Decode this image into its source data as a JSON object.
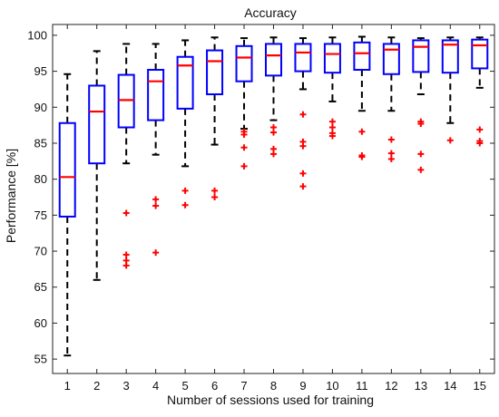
{
  "chart_data": {
    "type": "box",
    "title": "Accuracy",
    "xlabel": "Number of sessions used for training",
    "ylabel": "Performance [%]",
    "ylim": [
      53,
      101.5
    ],
    "yticks": [
      55,
      60,
      65,
      70,
      75,
      80,
      85,
      90,
      95,
      100
    ],
    "categories": [
      "1",
      "2",
      "3",
      "4",
      "5",
      "6",
      "7",
      "8",
      "9",
      "10",
      "11",
      "12",
      "13",
      "14",
      "15"
    ],
    "grid": false,
    "colors": {
      "box": "#0000ff",
      "median": "#ff0000",
      "whisker": "#000000",
      "outlier": "#ff0000"
    },
    "boxes": [
      {
        "category": "1",
        "whisker_low": 55.5,
        "q1": 74.8,
        "median": 80.3,
        "q3": 87.8,
        "whisker_high": 94.6,
        "outliers": []
      },
      {
        "category": "2",
        "whisker_low": 66.0,
        "q1": 82.2,
        "median": 89.4,
        "q3": 93.0,
        "whisker_high": 97.8,
        "outliers": []
      },
      {
        "category": "3",
        "whisker_low": 82.2,
        "q1": 87.2,
        "median": 91.0,
        "q3": 94.5,
        "whisker_high": 98.8,
        "outliers": [
          75.3,
          69.5,
          68.7,
          68.0
        ]
      },
      {
        "category": "4",
        "whisker_low": 83.4,
        "q1": 88.2,
        "median": 93.6,
        "q3": 95.2,
        "whisker_high": 98.8,
        "outliers": [
          77.2,
          76.3,
          69.8
        ]
      },
      {
        "category": "5",
        "whisker_low": 81.8,
        "q1": 89.8,
        "median": 95.8,
        "q3": 97.0,
        "whisker_high": 99.3,
        "outliers": [
          78.4,
          76.4
        ]
      },
      {
        "category": "6",
        "whisker_low": 84.8,
        "q1": 91.8,
        "median": 96.4,
        "q3": 97.9,
        "whisker_high": 99.7,
        "outliers": [
          78.4,
          77.5
        ]
      },
      {
        "category": "7",
        "whisker_low": 87.0,
        "q1": 93.6,
        "median": 96.9,
        "q3": 98.5,
        "whisker_high": 99.6,
        "outliers": [
          86.6,
          86.2,
          84.4,
          81.8
        ]
      },
      {
        "category": "8",
        "whisker_low": 88.2,
        "q1": 94.4,
        "median": 97.2,
        "q3": 98.8,
        "whisker_high": 99.7,
        "outliers": [
          87.2,
          86.5,
          84.2,
          83.5
        ]
      },
      {
        "category": "9",
        "whisker_low": 92.5,
        "q1": 95.0,
        "median": 97.6,
        "q3": 98.8,
        "whisker_high": 99.6,
        "outliers": [
          89.0,
          85.2,
          84.6,
          80.8,
          79.0
        ]
      },
      {
        "category": "10",
        "whisker_low": 90.8,
        "q1": 94.8,
        "median": 97.4,
        "q3": 98.8,
        "whisker_high": 99.7,
        "outliers": [
          88.0,
          87.2,
          86.4,
          86.0
        ]
      },
      {
        "category": "11",
        "whisker_low": 89.5,
        "q1": 95.2,
        "median": 97.5,
        "q3": 99.0,
        "whisker_high": 99.8,
        "outliers": [
          86.6,
          83.3,
          83.1
        ]
      },
      {
        "category": "12",
        "whisker_low": 89.5,
        "q1": 94.6,
        "median": 98.0,
        "q3": 98.8,
        "whisker_high": 99.7,
        "outliers": [
          85.5,
          83.6,
          82.8
        ]
      },
      {
        "category": "13",
        "whisker_low": 91.8,
        "q1": 94.9,
        "median": 98.4,
        "q3": 99.3,
        "whisker_high": 99.6,
        "outliers": [
          88.0,
          87.7,
          83.5,
          81.3
        ]
      },
      {
        "category": "14",
        "whisker_low": 87.8,
        "q1": 94.8,
        "median": 98.7,
        "q3": 99.3,
        "whisker_high": 99.7,
        "outliers": [
          85.4
        ]
      },
      {
        "category": "15",
        "whisker_low": 92.7,
        "q1": 95.4,
        "median": 98.6,
        "q3": 99.4,
        "whisker_high": 99.7,
        "outliers": [
          86.9,
          85.3,
          85.0
        ]
      }
    ]
  }
}
